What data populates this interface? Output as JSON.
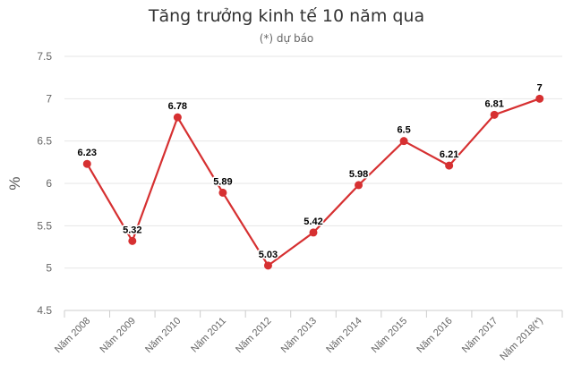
{
  "chart_data": {
    "type": "line",
    "title": "Tăng trưởng kinh tế 10 năm qua",
    "subtitle": "(*) dự báo",
    "xlabel": "",
    "ylabel": "%",
    "categories": [
      "Năm 2008",
      "Năm 2009",
      "Năm 2010",
      "Năm 2011",
      "Năm 2012",
      "Năm 2013",
      "Năm 2014",
      "Năm 2015",
      "Năm 2016",
      "Năm 2017",
      "Năm 2018(*)"
    ],
    "series": [
      {
        "values": [
          6.23,
          5.32,
          6.78,
          5.89,
          5.03,
          5.42,
          5.98,
          6.5,
          6.21,
          6.81,
          7
        ],
        "labels": [
          "6.23",
          "5.32",
          "6.78",
          "5.89",
          "5.03",
          "5.42",
          "5.98",
          "6.5",
          "6.21",
          "6.81",
          "7"
        ],
        "color": "#d63031"
      }
    ],
    "yticks": [
      "4.5",
      "5",
      "5.5",
      "6",
      "6.5",
      "7",
      "7.5"
    ],
    "ylim": [
      4.5,
      7.5
    ],
    "grid": true,
    "legend": "none"
  }
}
